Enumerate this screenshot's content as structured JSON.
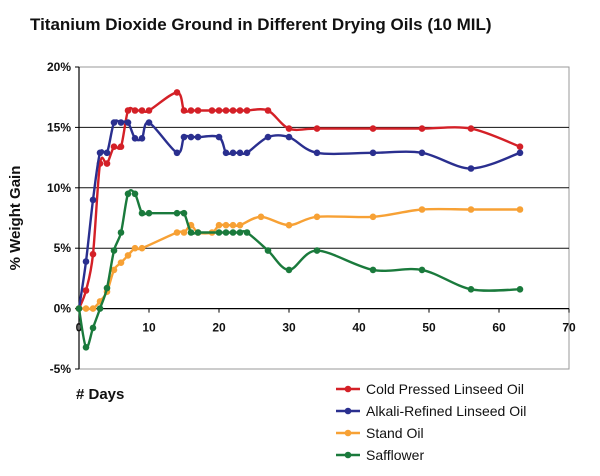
{
  "chart_data": {
    "type": "line",
    "title": "Titanium Dioxide Ground in Different Drying Oils (10 MIL)",
    "xlabel": "# Days",
    "ylabel": "% Weight Gain",
    "xlim": [
      0,
      70
    ],
    "ylim": [
      -5,
      20
    ],
    "x_ticks": [
      "0",
      "10",
      "20",
      "30",
      "40",
      "50",
      "60",
      "70"
    ],
    "y_ticks": [
      "-5%",
      "0%",
      "5%",
      "10%",
      "15%",
      "20%"
    ],
    "x_tick_values": [
      0,
      10,
      20,
      30,
      40,
      50,
      60,
      70
    ],
    "y_tick_values": [
      -5,
      0,
      5,
      10,
      15,
      20
    ],
    "grid": "horizontal",
    "legend": "bottom-right",
    "series": [
      {
        "name": "Cold Pressed Linseed Oil",
        "color": "#d42027",
        "points": [
          [
            0,
            0
          ],
          [
            1,
            1.5
          ],
          [
            2,
            4.5
          ],
          [
            3,
            12
          ],
          [
            4,
            12
          ],
          [
            5,
            13.4
          ],
          [
            6,
            13.4
          ],
          [
            7,
            16.4
          ],
          [
            8,
            16.4
          ],
          [
            9,
            16.4
          ],
          [
            10,
            16.4
          ],
          [
            14,
            17.9
          ],
          [
            15,
            16.4
          ],
          [
            16,
            16.4
          ],
          [
            17,
            16.4
          ],
          [
            19,
            16.4
          ],
          [
            20,
            16.4
          ],
          [
            21,
            16.4
          ],
          [
            22,
            16.4
          ],
          [
            23,
            16.4
          ],
          [
            24,
            16.4
          ],
          [
            27,
            16.4
          ],
          [
            30,
            14.9
          ],
          [
            34,
            14.9
          ],
          [
            42,
            14.9
          ],
          [
            49,
            14.9
          ],
          [
            56,
            14.9
          ],
          [
            63,
            13.4
          ]
        ]
      },
      {
        "name": "Alkali-Refined Linseed Oil",
        "color": "#2a2f8f",
        "points": [
          [
            0,
            0
          ],
          [
            1,
            3.9
          ],
          [
            2,
            9
          ],
          [
            3,
            12.9
          ],
          [
            4,
            12.9
          ],
          [
            5,
            15.4
          ],
          [
            6,
            15.4
          ],
          [
            7,
            15.4
          ],
          [
            8,
            14.1
          ],
          [
            9,
            14.1
          ],
          [
            10,
            15.4
          ],
          [
            14,
            12.9
          ],
          [
            15,
            14.2
          ],
          [
            16,
            14.2
          ],
          [
            17,
            14.2
          ],
          [
            20,
            14.2
          ],
          [
            21,
            12.9
          ],
          [
            22,
            12.9
          ],
          [
            23,
            12.9
          ],
          [
            24,
            12.9
          ],
          [
            27,
            14.2
          ],
          [
            30,
            14.2
          ],
          [
            34,
            12.9
          ],
          [
            42,
            12.9
          ],
          [
            49,
            12.9
          ],
          [
            56,
            11.6
          ],
          [
            63,
            12.9
          ]
        ]
      },
      {
        "name": "Stand Oil",
        "color": "#f7a135",
        "points": [
          [
            0,
            0
          ],
          [
            1,
            0
          ],
          [
            2,
            0
          ],
          [
            3,
            0.6
          ],
          [
            4,
            1.4
          ],
          [
            5,
            3.2
          ],
          [
            6,
            3.8
          ],
          [
            7,
            4.4
          ],
          [
            8,
            5
          ],
          [
            9,
            5
          ],
          [
            14,
            6.3
          ],
          [
            15,
            6.3
          ],
          [
            16,
            6.9
          ],
          [
            17,
            6.3
          ],
          [
            19,
            6.3
          ],
          [
            20,
            6.9
          ],
          [
            21,
            6.9
          ],
          [
            22,
            6.9
          ],
          [
            23,
            6.9
          ],
          [
            26,
            7.6
          ],
          [
            30,
            6.9
          ],
          [
            34,
            7.6
          ],
          [
            42,
            7.6
          ],
          [
            49,
            8.2
          ],
          [
            56,
            8.2
          ],
          [
            63,
            8.2
          ]
        ]
      },
      {
        "name": "Safflower",
        "color": "#1a7a3c",
        "points": [
          [
            0,
            0
          ],
          [
            1,
            -3.2
          ],
          [
            2,
            -1.6
          ],
          [
            3,
            0
          ],
          [
            4,
            1.7
          ],
          [
            5,
            4.8
          ],
          [
            6,
            6.3
          ],
          [
            7,
            9.5
          ],
          [
            8,
            9.5
          ],
          [
            9,
            7.9
          ],
          [
            10,
            7.9
          ],
          [
            14,
            7.9
          ],
          [
            15,
            7.9
          ],
          [
            16,
            6.3
          ],
          [
            17,
            6.3
          ],
          [
            20,
            6.3
          ],
          [
            21,
            6.3
          ],
          [
            22,
            6.3
          ],
          [
            23,
            6.3
          ],
          [
            24,
            6.3
          ],
          [
            27,
            4.8
          ],
          [
            30,
            3.2
          ],
          [
            34,
            4.8
          ],
          [
            42,
            3.2
          ],
          [
            49,
            3.2
          ],
          [
            56,
            1.6
          ],
          [
            63,
            1.6
          ]
        ]
      }
    ]
  }
}
